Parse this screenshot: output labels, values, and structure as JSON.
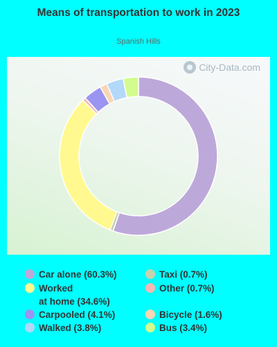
{
  "title": "Means of transportation to work in 2023",
  "subtitle": "Spanish Hills",
  "watermark": "City-Data.com",
  "chart_data": {
    "type": "pie",
    "title": "Means of transportation to work in 2023",
    "subtitle": "Spanish Hills",
    "donut": true,
    "start_angle_deg": 0,
    "direction": "clockwise",
    "legend_position": "bottom",
    "slices": [
      {
        "label": "Car alone",
        "display": "Car alone (60.3%)",
        "value": 60.3,
        "color": "#bda8da"
      },
      {
        "label": "Taxi",
        "display": "Taxi (0.7%)",
        "value": 0.7,
        "color": "#c4d3ad"
      },
      {
        "label": "Worked at home",
        "display": "Worked\nat home (34.6%)",
        "value": 34.6,
        "color": "#fff98f"
      },
      {
        "label": "Other",
        "display": "Other (0.7%)",
        "value": 0.7,
        "color": "#f6b8b3"
      },
      {
        "label": "Carpooled",
        "display": "Carpooled (4.1%)",
        "value": 4.1,
        "color": "#9a95f0"
      },
      {
        "label": "Bicycle",
        "display": "Bicycle (1.6%)",
        "value": 1.6,
        "color": "#fad7b4"
      },
      {
        "label": "Walked",
        "display": "Walked (3.8%)",
        "value": 3.8,
        "color": "#b3d8f9"
      },
      {
        "label": "Bus",
        "display": "Bus (3.4%)",
        "value": 3.4,
        "color": "#d3fb8d"
      }
    ]
  }
}
